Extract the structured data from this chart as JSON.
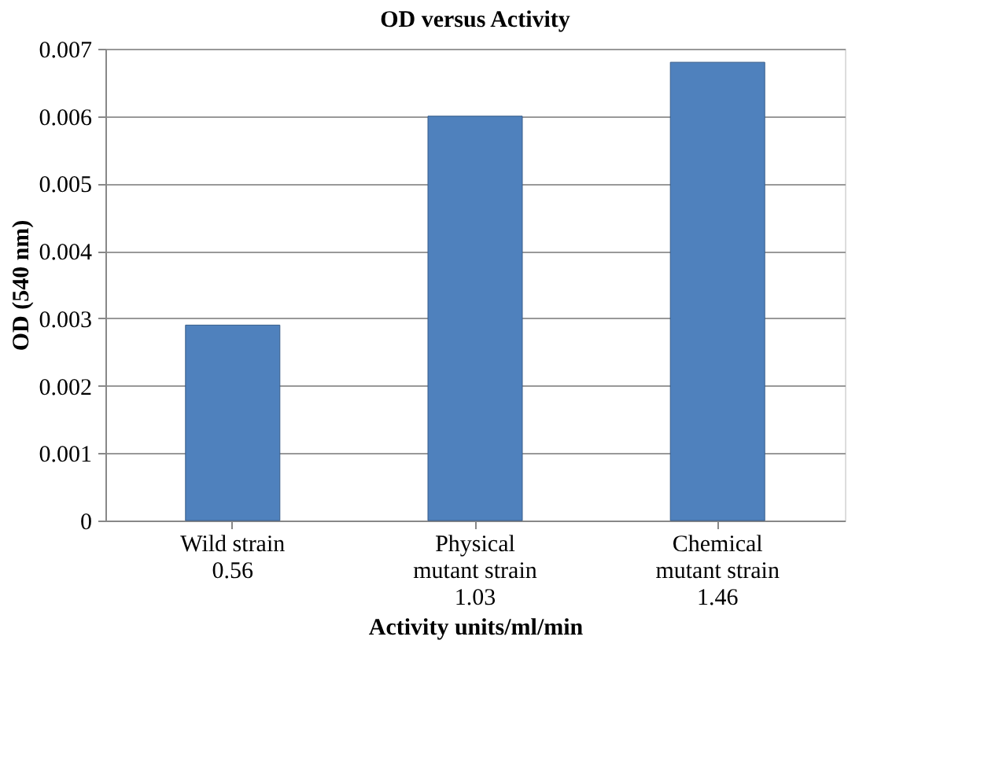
{
  "chart_data": {
    "type": "bar",
    "title": "OD versus Activity",
    "xlabel": "Activity units/ml/min",
    "ylabel": "OD (540 nm)",
    "categories": [
      "Wild strain\n0.56",
      "Physical\nmutant strain\n1.03",
      "Chemical\nmutant strain\n1.46"
    ],
    "values": [
      0.0029,
      0.006,
      0.0068
    ],
    "color": "#4f81bd",
    "ylim": [
      0,
      0.007
    ],
    "yticks": [
      0,
      0.001,
      0.002,
      0.003,
      0.004,
      0.005,
      0.006,
      0.007
    ],
    "grid": "y"
  }
}
